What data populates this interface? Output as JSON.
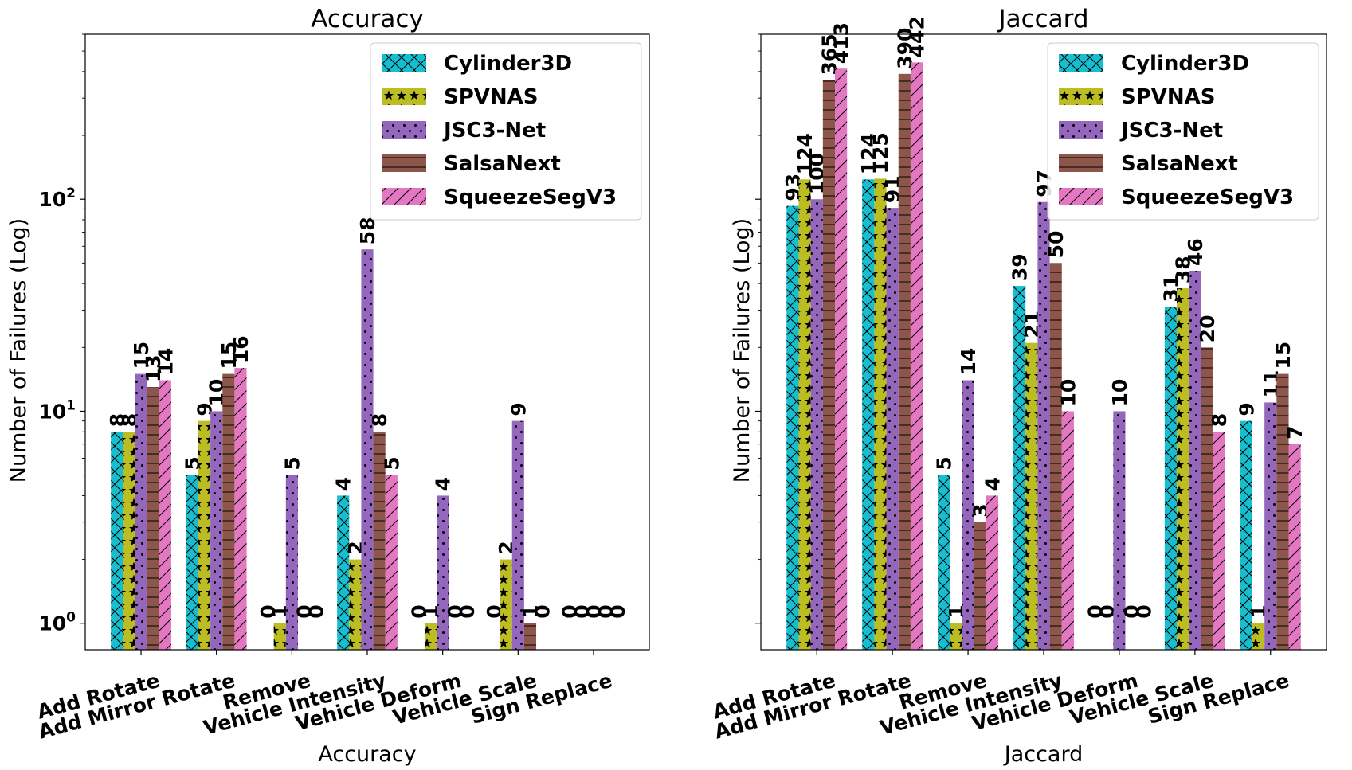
{
  "figure": {
    "ylabel": "Number of Failures (Log)"
  },
  "colors": {
    "Cylinder3D": "#17becf",
    "SPVNAS": "#bcbd22",
    "JSC3-Net": "#9467bd",
    "SalsaNext": "#8c564b",
    "SqueezeSegV3": "#e377c2"
  },
  "patterns": {
    "Cylinder3D": "cross-hatch",
    "SPVNAS": "stars",
    "JSC3-Net": "dots",
    "SalsaNext": "horizontal-lines",
    "SqueezeSegV3": "diagonal-lines"
  },
  "chart_data": [
    {
      "type": "bar",
      "title": "Accuracy",
      "xlabel": "Accuracy",
      "ylabel": "Number of Failures (Log)",
      "yscale": "log",
      "ylim": [
        0.75,
        600
      ],
      "yticks": [
        {
          "value": 1,
          "base": "10",
          "exp": "0"
        },
        {
          "value": 10,
          "base": "10",
          "exp": "1"
        },
        {
          "value": 100,
          "base": "10",
          "exp": "2"
        }
      ],
      "legend": "top-right",
      "categories": [
        "Add Rotate",
        "Add Mirror Rotate",
        "Remove",
        "Vehicle Intensity",
        "Vehicle Deform",
        "Vehicle Scale",
        "Sign Replace"
      ],
      "series": [
        {
          "name": "Cylinder3D",
          "values": [
            8,
            5,
            0,
            4,
            0,
            0,
            0
          ]
        },
        {
          "name": "SPVNAS",
          "values": [
            8,
            9,
            1,
            2,
            1,
            2,
            0
          ]
        },
        {
          "name": "JSC3-Net",
          "values": [
            15,
            10,
            5,
            58,
            4,
            9,
            0
          ]
        },
        {
          "name": "SalsaNext",
          "values": [
            13,
            15,
            0,
            8,
            0,
            1,
            0
          ]
        },
        {
          "name": "SqueezeSegV3",
          "values": [
            14,
            16,
            0,
            5,
            0,
            0,
            0
          ]
        }
      ]
    },
    {
      "type": "bar",
      "title": "Jaccard",
      "xlabel": "Jaccard",
      "ylabel": "Number of Failures (Log)",
      "yscale": "log",
      "ylim": [
        0.75,
        600
      ],
      "yticks": [],
      "legend": "top-right",
      "categories": [
        "Add Rotate",
        "Add Mirror Rotate",
        "Remove",
        "Vehicle Intensity",
        "Vehicle Deform",
        "Vehicle Scale",
        "Sign Replace"
      ],
      "series": [
        {
          "name": "Cylinder3D",
          "values": [
            93,
            124,
            5,
            39,
            0,
            31,
            9
          ]
        },
        {
          "name": "SPVNAS",
          "values": [
            124,
            125,
            1,
            21,
            0,
            38,
            1
          ]
        },
        {
          "name": "JSC3-Net",
          "values": [
            100,
            91,
            14,
            97,
            10,
            46,
            11
          ]
        },
        {
          "name": "SalsaNext",
          "values": [
            365,
            390,
            3,
            50,
            0,
            20,
            15
          ]
        },
        {
          "name": "SqueezeSegV3",
          "values": [
            413,
            442,
            4,
            10,
            0,
            8,
            7
          ]
        }
      ]
    }
  ]
}
